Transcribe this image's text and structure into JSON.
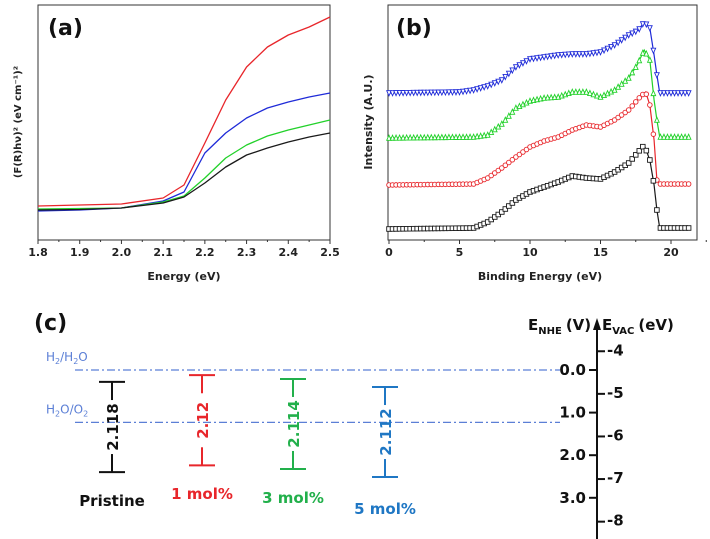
{
  "chart_data": [
    {
      "type": "line",
      "panel_label": "(a)",
      "xlabel": "Energy (eV)",
      "ylabel": "(F(R)hν)² (eV cm⁻¹)²",
      "xlim": [
        1.8,
        2.5
      ],
      "ylim": [
        0,
        235
      ],
      "xticks": [
        "1.8",
        "1.9",
        "2.0",
        "2.1",
        "2.2",
        "2.3",
        "2.4",
        "2.5"
      ],
      "grid": false,
      "x": [
        1.8,
        1.9,
        2.0,
        2.1,
        2.15,
        2.2,
        2.25,
        2.3,
        2.35,
        2.4,
        2.45,
        2.5
      ],
      "series": [
        {
          "color": "#e8262b",
          "values": [
            34,
            35,
            36,
            42,
            55,
            97,
            140,
            173,
            193,
            205,
            213,
            223
          ]
        },
        {
          "color": "#1f2bd8",
          "values": [
            29,
            30,
            32,
            39,
            48,
            87,
            107,
            122,
            132,
            138,
            143,
            147
          ]
        },
        {
          "color": "#22d12a",
          "values": [
            31,
            31.5,
            32,
            38,
            44,
            62,
            82,
            95,
            104,
            110,
            115,
            120
          ]
        },
        {
          "color": "#1a1a1a",
          "values": [
            30,
            30.5,
            32,
            37,
            43,
            57,
            73,
            85,
            92,
            98,
            103,
            107
          ]
        }
      ]
    },
    {
      "type": "line",
      "panel_label": "(b)",
      "xlabel": "Binding Energy (eV)",
      "ylabel": "Intensity (A.U.)",
      "xlim": [
        0,
        21.3
      ],
      "ylim": [
        0,
        235
      ],
      "xticks": [
        "0",
        "5",
        "10",
        "15",
        "20"
      ],
      "grid": false,
      "series": [
        {
          "color": "#1f2bd8",
          "marker": "triangle-down",
          "x": [
            0,
            5,
            6,
            7,
            8,
            9,
            10,
            11,
            12,
            13,
            14,
            15,
            16,
            17,
            17.7,
            18.1,
            18.5,
            18.8,
            19.0,
            19.2,
            21.3
          ],
          "values": [
            147,
            148,
            150,
            154,
            160,
            173,
            181,
            183,
            185,
            186,
            186,
            188,
            195,
            205,
            210,
            218,
            212,
            185,
            165,
            147,
            147
          ]
        },
        {
          "color": "#22d12a",
          "marker": "triangle-up",
          "x": [
            0,
            6,
            7,
            8,
            9,
            10,
            11,
            12,
            13,
            14,
            15,
            16,
            17,
            17.6,
            18.1,
            18.5,
            18.8,
            19.0,
            19.2,
            21.3
          ],
          "values": [
            102,
            103,
            105,
            116,
            132,
            139,
            142,
            143,
            148,
            148,
            143,
            150,
            162,
            175,
            190,
            180,
            140,
            120,
            103,
            103
          ]
        },
        {
          "color": "#e8262b",
          "marker": "circle",
          "x": [
            0,
            6,
            7,
            8,
            9,
            10,
            11,
            12,
            13,
            14,
            15,
            16,
            17,
            17.8,
            18.2,
            18.5,
            18.8,
            19.0,
            19.2,
            21.3
          ],
          "values": [
            55,
            56,
            62,
            72,
            83,
            93,
            99,
            103,
            110,
            115,
            113,
            120,
            130,
            143,
            148,
            135,
            100,
            60,
            56,
            56
          ]
        },
        {
          "color": "#1a1a1a",
          "marker": "square",
          "x": [
            0,
            6,
            7,
            8,
            9,
            10,
            11,
            12,
            13,
            14,
            15,
            16,
            17,
            17.8,
            18.1,
            18.5,
            18.8,
            19.0,
            19.2,
            21.3
          ],
          "values": [
            11,
            12,
            18,
            28,
            40,
            48,
            53,
            58,
            64,
            62,
            61,
            68,
            77,
            90,
            95,
            80,
            55,
            30,
            12,
            12
          ]
        }
      ]
    }
  ],
  "band_diagram": {
    "panel_label": "(c)",
    "nhe_axis": {
      "symbol": "E",
      "sub": "NHE",
      "unit": "(V)",
      "ticks": [
        "0.0",
        "1.0",
        "2.0",
        "3.0"
      ]
    },
    "vac_axis": {
      "symbol": "E",
      "sub": "VAC",
      "unit": "(eV)",
      "ticks": [
        "-4",
        "-5",
        "-6",
        "-7",
        "-8"
      ]
    },
    "redox_levels": [
      {
        "label_main": "H",
        "sub1": "2",
        "mid": "/H",
        "sub2": "2",
        "tail": "O",
        "potential": 0.0
      },
      {
        "label_main": "H",
        "sub1": "2",
        "mid": "O/O",
        "sub2": "2",
        "tail": "",
        "potential": 1.23
      }
    ],
    "dashed_color": "#5b7fd6",
    "samples": [
      {
        "name": "Pristine",
        "gap": "2.118",
        "cb": 0.28,
        "vb": 2.398,
        "color": "#111111"
      },
      {
        "name": "1 mol%",
        "gap": "2.12",
        "cb": 0.12,
        "vb": 2.24,
        "color": "#e8262b"
      },
      {
        "name": "3 mol%",
        "gap": "2.114",
        "cb": 0.21,
        "vb": 2.324,
        "color": "#22b04b"
      },
      {
        "name": "5 mol%",
        "gap": "2.112",
        "cb": 0.4,
        "vb": 2.512,
        "color": "#1f77c4"
      }
    ]
  }
}
